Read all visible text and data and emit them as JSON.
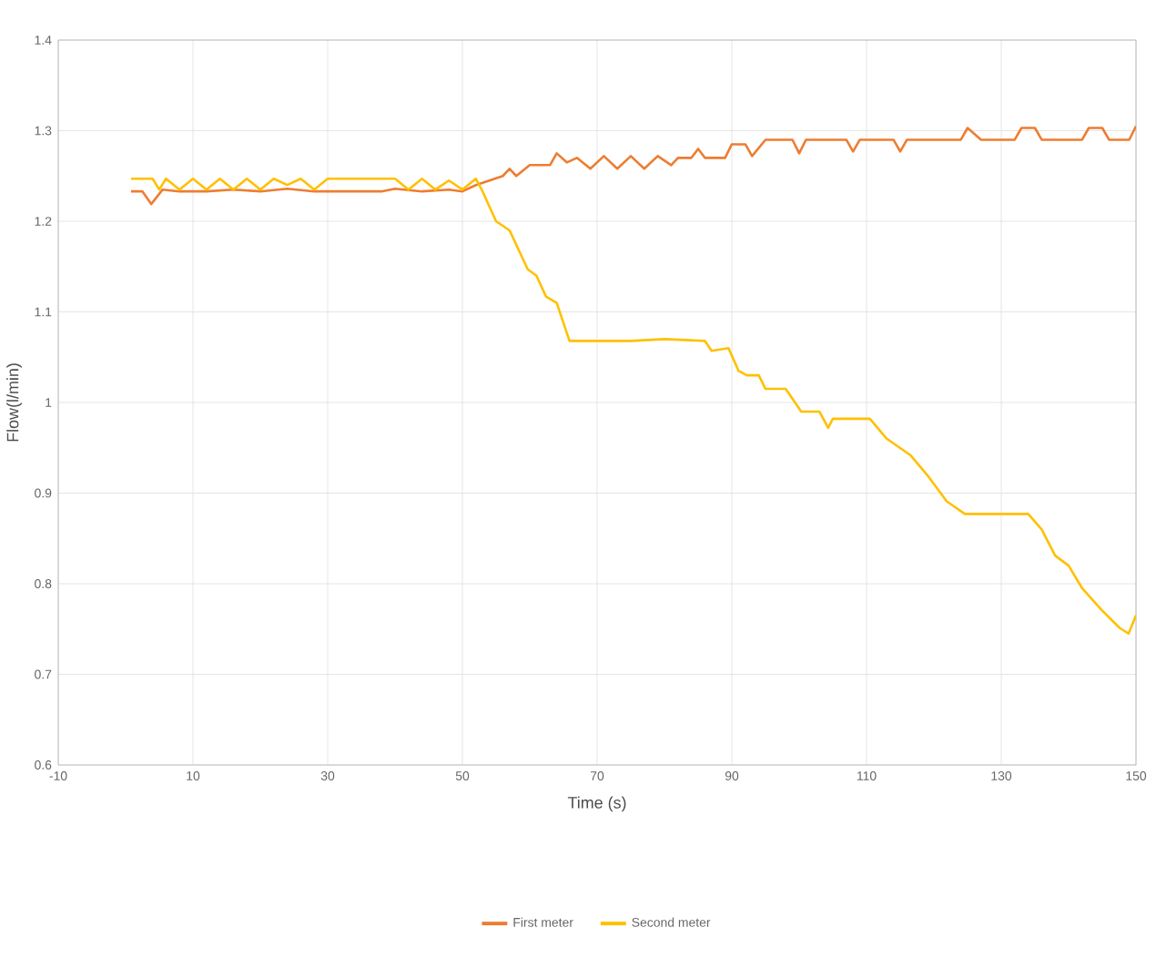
{
  "chart_data": {
    "type": "line",
    "xlabel": "Time (s)",
    "ylabel": "Flow(l/min)",
    "xlim": [
      -10,
      150
    ],
    "xticks": [
      -10,
      10,
      30,
      50,
      70,
      90,
      110,
      130,
      150
    ],
    "ylim": [
      0.6,
      1.4
    ],
    "yticks": [
      0.6,
      0.7,
      0.8,
      0.9,
      1,
      1.1,
      1.2,
      1.3,
      1.4
    ],
    "grid": true,
    "legend": "bottom",
    "marker": "none",
    "line_style": "solid",
    "series": [
      {
        "name": "First meter",
        "color": "#ed7d31",
        "x": [
          0.8,
          2.5,
          3.8,
          5.5,
          8,
          12,
          16,
          20,
          24,
          28,
          34,
          38,
          40,
          44,
          48,
          50,
          52,
          54,
          56,
          57,
          58,
          60,
          63,
          64,
          65.5,
          67,
          69,
          71,
          73,
          75,
          77,
          79,
          81,
          82,
          84,
          85,
          86,
          89,
          90,
          92,
          93,
          95,
          99,
          100,
          101,
          107,
          108,
          109,
          114,
          115,
          116,
          124,
          125,
          127,
          132,
          133,
          135,
          136,
          142,
          143,
          145,
          146,
          149,
          150
        ],
        "values": [
          1.233,
          1.233,
          1.219,
          1.235,
          1.233,
          1.233,
          1.235,
          1.233,
          1.236,
          1.233,
          1.233,
          1.233,
          1.236,
          1.233,
          1.235,
          1.233,
          1.24,
          1.245,
          1.25,
          1.258,
          1.25,
          1.262,
          1.262,
          1.275,
          1.265,
          1.27,
          1.258,
          1.272,
          1.258,
          1.272,
          1.258,
          1.272,
          1.262,
          1.27,
          1.27,
          1.28,
          1.27,
          1.27,
          1.285,
          1.285,
          1.272,
          1.29,
          1.29,
          1.275,
          1.29,
          1.29,
          1.277,
          1.29,
          1.29,
          1.277,
          1.29,
          1.29,
          1.303,
          1.29,
          1.29,
          1.303,
          1.303,
          1.29,
          1.29,
          1.303,
          1.303,
          1.29,
          1.29,
          1.305
        ]
      },
      {
        "name": "Second meter",
        "color": "#ffc000",
        "x": [
          0.8,
          4,
          5,
          6,
          8,
          10,
          12,
          14,
          16,
          18,
          20,
          22,
          24,
          26,
          28,
          30,
          40,
          42,
          44,
          46,
          48,
          50,
          52,
          53,
          55,
          57,
          59.7,
          61,
          62.4,
          64,
          65.9,
          75,
          80,
          86,
          87,
          89.5,
          91,
          92.2,
          94,
          95,
          98,
          100.3,
          103,
          104.3,
          105,
          110.5,
          113,
          116.5,
          119,
          121.9,
          124.6,
          134,
          136,
          138,
          140,
          142,
          144.9,
          147.6,
          148.9,
          150
        ],
        "values": [
          1.247,
          1.247,
          1.235,
          1.247,
          1.235,
          1.247,
          1.235,
          1.247,
          1.235,
          1.247,
          1.235,
          1.247,
          1.24,
          1.247,
          1.235,
          1.247,
          1.247,
          1.235,
          1.247,
          1.235,
          1.245,
          1.235,
          1.247,
          1.233,
          1.2,
          1.19,
          1.147,
          1.14,
          1.117,
          1.11,
          1.068,
          1.068,
          1.07,
          1.068,
          1.057,
          1.06,
          1.035,
          1.03,
          1.03,
          1.015,
          1.015,
          0.99,
          0.99,
          0.972,
          0.982,
          0.982,
          0.96,
          0.942,
          0.92,
          0.891,
          0.877,
          0.877,
          0.86,
          0.831,
          0.82,
          0.795,
          0.771,
          0.751,
          0.745,
          0.765
        ]
      }
    ]
  }
}
